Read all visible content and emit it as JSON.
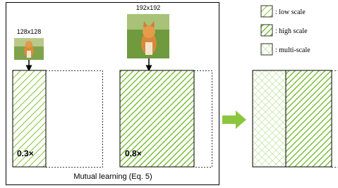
{
  "left_panel": {
    "small_input": {
      "label": "128x128"
    },
    "large_input": {
      "label": "192x192"
    },
    "small_ratio": "0.3×",
    "large_ratio": "0.8×",
    "caption": "Mutual learning (Eq. 5)"
  },
  "legend": [
    {
      "label": ": low scale"
    },
    {
      "label": ": high scale"
    },
    {
      "label": ": multi-scale"
    }
  ]
}
